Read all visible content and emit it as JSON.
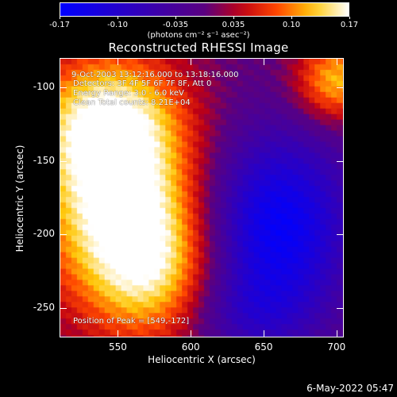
{
  "colorbar": {
    "tick_labels": [
      "-0.17",
      "-0.10",
      "-0.035",
      "0.035",
      "0.10",
      "0.17"
    ],
    "units": "(photons cm⁻² s⁻¹ asec⁻²)",
    "colors": {
      "negative_start": "#0000ff",
      "mid": "#5a0080",
      "positive_end": "#ffffff"
    }
  },
  "title": "Reconstructed RHESSI Image",
  "info_lines": {
    "time": "9-Oct-2003 13:12:16.000 to 13:18:16.000",
    "detectors": "Detectors: 3F 4F 5F 6F 7F 8F, Att 0",
    "energy": "Energy Range: 3.0 - 6.0 keV",
    "method": "Clean     Total counts: 8.21E+04",
    "peak": "Position of Peak = [549,-172]"
  },
  "axes": {
    "xlabel": "Heliocentric X (arcsec)",
    "ylabel": "Heliocentric Y (arcsec)",
    "xticks": [
      550,
      600,
      650,
      700
    ],
    "yticks": [
      -100,
      -150,
      -200,
      -250
    ],
    "xlim": [
      510,
      705
    ],
    "ylim": [
      -270,
      -80
    ]
  },
  "footer_date": "6-May-2022 05:47"
}
